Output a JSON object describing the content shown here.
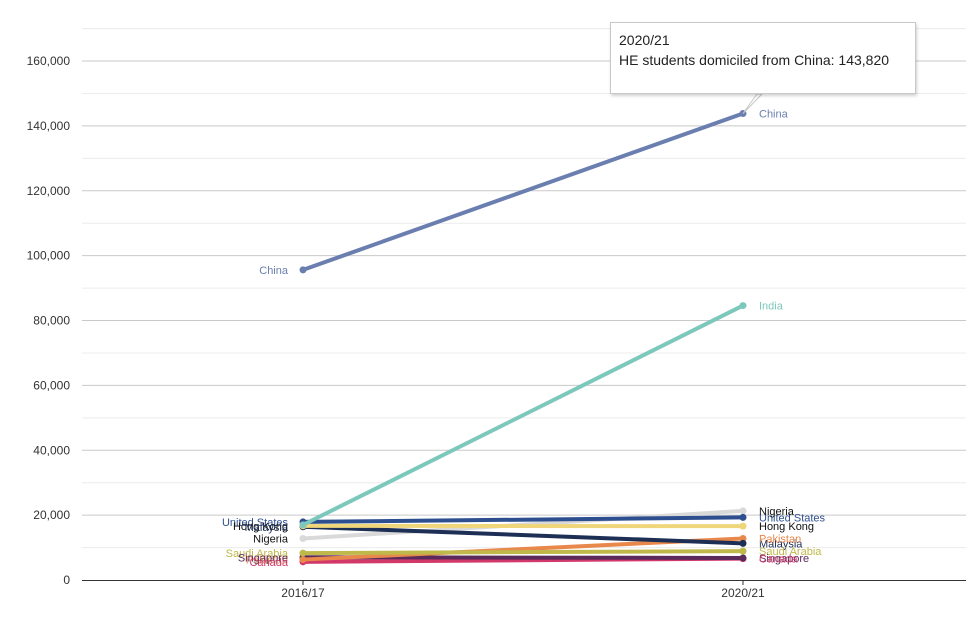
{
  "chart_data": {
    "type": "line",
    "x": [
      "2016/17",
      "2020/21"
    ],
    "ylim": [
      0,
      160000
    ],
    "yticks": [
      0,
      20000,
      40000,
      60000,
      80000,
      100000,
      120000,
      140000,
      160000
    ],
    "ytick_labels": [
      "0",
      "20,000",
      "40,000",
      "60,000",
      "80,000",
      "100,000",
      "120,000",
      "140,000",
      "160,000"
    ],
    "grid": true,
    "series": [
      {
        "name": "China",
        "values": [
          95600,
          143820
        ],
        "color": "#6a7fb0",
        "show_left": true,
        "show_right": true
      },
      {
        "name": "India",
        "values": [
          17000,
          84600
        ],
        "color": "#7cc8bc",
        "show_left": false,
        "show_right": true
      },
      {
        "name": "United States",
        "values": [
          17900,
          19300
        ],
        "color": "#2e4f8f",
        "show_left": true,
        "show_right": true
      },
      {
        "name": "Hong Kong",
        "values": [
          16700,
          16600
        ],
        "color": "#f0d67a",
        "show_left": true,
        "show_right": true
      },
      {
        "name": "Malaysia",
        "values": [
          16400,
          11300
        ],
        "color": "#1e2f55",
        "show_left": true,
        "show_right": true
      },
      {
        "name": "Nigeria",
        "values": [
          12800,
          21300
        ],
        "color": "#d9d9d9",
        "show_left": true,
        "show_right": true
      },
      {
        "name": "Saudi Arabia",
        "values": [
          8300,
          8900
        ],
        "color": "#bfb84a",
        "show_left": true,
        "show_right": true
      },
      {
        "name": "Pakistan",
        "values": [
          6300,
          12800
        ],
        "color": "#e8884a",
        "show_left": true,
        "show_right": true
      },
      {
        "name": "Singapore",
        "values": [
          7000,
          6800
        ],
        "color": "#5a2a5a",
        "show_left": true,
        "show_right": true
      },
      {
        "name": "Canada",
        "values": [
          5600,
          6600
        ],
        "color": "#d2386a",
        "show_left": true,
        "show_right": true
      }
    ]
  },
  "tooltip": {
    "line1": "2020/21",
    "line2": "HE students domiciled from China: 143,820"
  }
}
